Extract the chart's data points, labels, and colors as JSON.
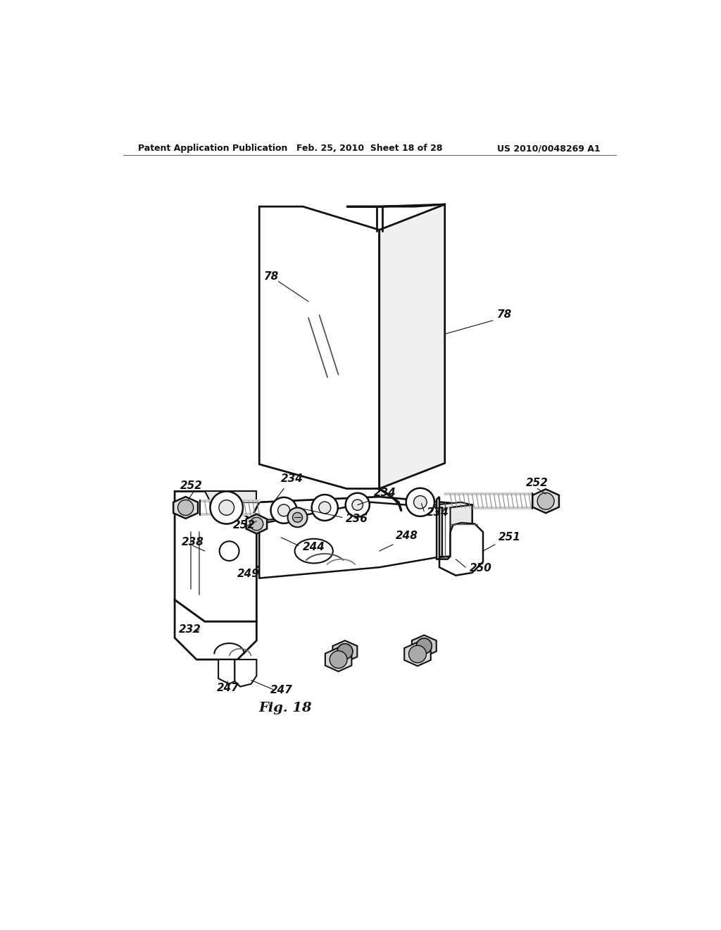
{
  "bg_color": "#ffffff",
  "header_left": "Patent Application Publication",
  "header_mid": "Feb. 25, 2010  Sheet 18 of 28",
  "header_right": "US 2010/0048269 A1",
  "figure_label": "Fig. 18",
  "black": "#111111",
  "gray_light": "#e8e8e8",
  "gray_mid": "#cccccc",
  "gray_dark": "#999999"
}
